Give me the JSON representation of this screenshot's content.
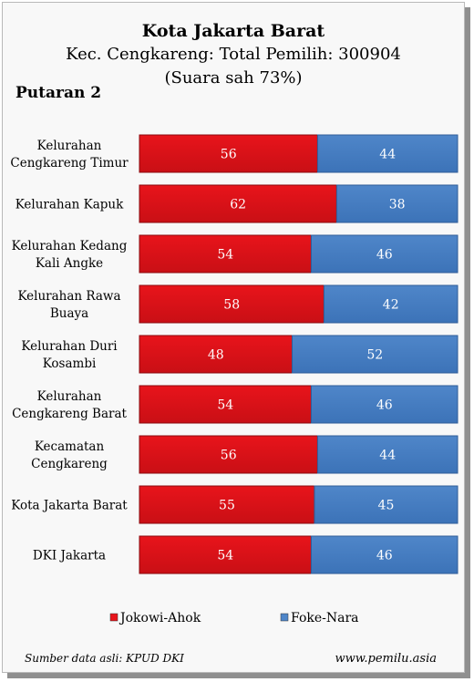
{
  "header": {
    "title": "Kota Jakarta Barat",
    "subtitle": "Kec. Cengkareng: Total Pemilih: 300904",
    "subtitle2": "(Suara sah 73%)",
    "round": "Putaran 2"
  },
  "chart_data": {
    "type": "bar",
    "orientation": "horizontal",
    "stacked": true,
    "percent": true,
    "xlim": [
      0,
      100
    ],
    "categories": [
      [
        "Kelurahan",
        "Cengkareng Timur"
      ],
      [
        "Kelurahan Kapuk"
      ],
      [
        "Kelurahan Kedang",
        "Kali Angke"
      ],
      [
        "Kelurahan Rawa",
        "Buaya"
      ],
      [
        "Kelurahan Duri",
        "Kosambi"
      ],
      [
        "Kelurahan",
        "Cengkareng Barat"
      ],
      [
        "Kecamatan",
        "Cengkareng"
      ],
      [
        "Kota Jakarta Barat"
      ],
      [
        "DKI Jakarta"
      ]
    ],
    "series": [
      {
        "name": "Jokowi-Ahok",
        "color": "#e8141b",
        "values": [
          56,
          62,
          54,
          58,
          48,
          54,
          56,
          55,
          54
        ]
      },
      {
        "name": "Foke-Nara",
        "color": "#4f86c9",
        "values": [
          44,
          38,
          46,
          42,
          52,
          46,
          44,
          45,
          46
        ]
      }
    ],
    "legend_position": "bottom",
    "grid": false
  },
  "footer": {
    "source": "Sumber data asli: KPUD DKI",
    "site": "www.pemilu.asia"
  }
}
